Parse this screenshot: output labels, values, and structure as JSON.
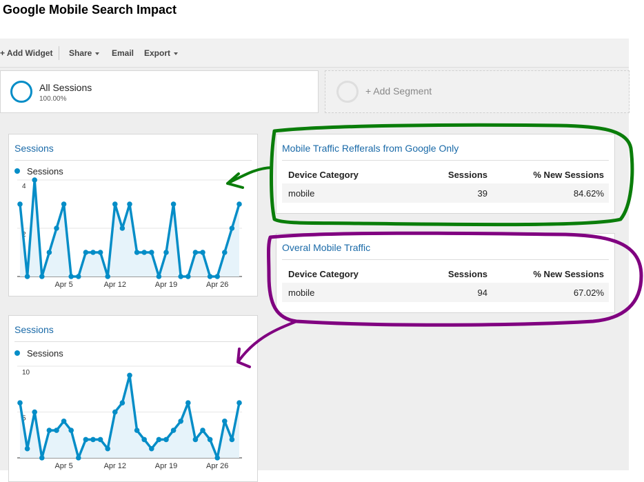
{
  "page_title": "Google Mobile Search Impact",
  "toolbar": {
    "add_widget": "+ Add Widget",
    "share": "Share",
    "email": "Email",
    "export": "Export"
  },
  "segments": {
    "active": {
      "name": "All Sessions",
      "percent": "100.00%"
    },
    "add_label": "+ Add Segment"
  },
  "colors": {
    "accent": "#058dc7",
    "title_blue": "#1a6aa8",
    "green_annotation": "#0a7d0a",
    "purple_annotation": "#800080"
  },
  "widgets": {
    "chart1": {
      "title": "Sessions",
      "legend": "Sessions"
    },
    "chart2": {
      "title": "Sessions",
      "legend": "Sessions"
    },
    "table1": {
      "title": "Mobile Traffic Refferals from Google Only",
      "columns": [
        "Device Category",
        "Sessions",
        "% New Sessions"
      ],
      "rows": [
        {
          "device": "mobile",
          "sessions": "39",
          "new_pct": "84.62%"
        }
      ]
    },
    "table2": {
      "title": "Overal Mobile Traffic",
      "columns": [
        "Device Category",
        "Sessions",
        "% New Sessions"
      ],
      "rows": [
        {
          "device": "mobile",
          "sessions": "94",
          "new_pct": "67.02%"
        }
      ]
    }
  },
  "chart_data": [
    {
      "type": "area",
      "title": "Sessions",
      "series": [
        {
          "name": "Sessions",
          "values": [
            3,
            0,
            4,
            0,
            1,
            2,
            3,
            0,
            0,
            1,
            1,
            1,
            0,
            3,
            2,
            3,
            1,
            1,
            1,
            0,
            1,
            3,
            0,
            0,
            1,
            1,
            0,
            0,
            1,
            2,
            3
          ]
        }
      ],
      "x_tick_labels": [
        "Apr 5",
        "Apr 12",
        "Apr 19",
        "Apr 26"
      ],
      "y_tick_labels": [
        "2",
        "4"
      ],
      "ylim": [
        0,
        4
      ]
    },
    {
      "type": "area",
      "title": "Sessions",
      "series": [
        {
          "name": "Sessions",
          "values": [
            6,
            1,
            5,
            0,
            3,
            3,
            4,
            3,
            0,
            2,
            2,
            2,
            1,
            5,
            6,
            9,
            3,
            2,
            1,
            2,
            2,
            3,
            4,
            6,
            2,
            3,
            2,
            0,
            4,
            2,
            6
          ]
        }
      ],
      "x_tick_labels": [
        "Apr 5",
        "Apr 12",
        "Apr 19",
        "Apr 26"
      ],
      "y_tick_labels": [
        "5",
        "10"
      ],
      "ylim": [
        0,
        10
      ]
    }
  ]
}
